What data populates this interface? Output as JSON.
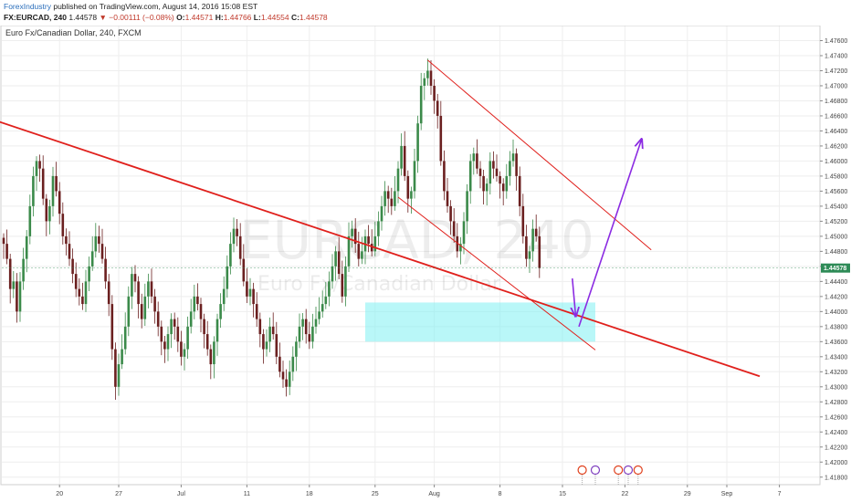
{
  "header": {
    "author": "ForexIndustry",
    "published": "published on TradingView.com, August 14, 2016 15:08 EST",
    "symbol": "FX:EURCAD, 240",
    "last": "1.44578",
    "change": "−0.00111 (−0.08%)",
    "o_label": "O:",
    "o_value": "1.44571",
    "h_label": "H:",
    "h_value": "1.44766",
    "l_label": "L:",
    "l_value": "1.44554",
    "c_label": "C:",
    "c_value": "1.44578"
  },
  "chart_data": {
    "type": "candlestick",
    "title": "Euro Fx/Canadian Dollar, 240, FXCM",
    "watermark": "EURCAD, 240",
    "watermark_sub": "Euro Fx/Canadian Dollar",
    "last_price": 1.44578,
    "last_price_label": "1.44578",
    "y_ticks": [
      "1.47600",
      "1.47400",
      "1.47200",
      "1.47000",
      "1.46800",
      "1.46600",
      "1.46400",
      "1.46200",
      "1.46000",
      "1.45800",
      "1.45600",
      "1.45400",
      "1.45200",
      "1.45000",
      "1.44800",
      "1.44600",
      "1.44400",
      "1.44200",
      "1.44000",
      "1.43800",
      "1.43600",
      "1.43400",
      "1.43200",
      "1.43000",
      "1.42800",
      "1.42600",
      "1.42400",
      "1.42200",
      "1.42000",
      "1.41800"
    ],
    "ylim": [
      1.417,
      1.478
    ],
    "x_ticks": [
      {
        "label": "20",
        "bar": 17
      },
      {
        "label": "27",
        "bar": 35
      },
      {
        "label": "Jul",
        "bar": 54
      },
      {
        "label": "11",
        "bar": 74
      },
      {
        "label": "18",
        "bar": 93
      },
      {
        "label": "25",
        "bar": 113
      },
      {
        "label": "Aug",
        "bar": 131
      },
      {
        "label": "8",
        "bar": 151
      },
      {
        "label": "15",
        "bar": 170
      },
      {
        "label": "22",
        "bar": 189
      },
      {
        "label": "29",
        "bar": 208
      },
      {
        "label": "Sep",
        "bar": 220
      },
      {
        "label": "7",
        "bar": 236
      }
    ],
    "series": [
      {
        "name": "EURCAD",
        "closes": [
          1.449,
          1.447,
          1.443,
          1.444,
          1.44,
          1.444,
          1.447,
          1.45,
          1.454,
          1.458,
          1.46,
          1.459,
          1.455,
          1.452,
          1.454,
          1.458,
          1.456,
          1.453,
          1.45,
          1.449,
          1.447,
          1.445,
          1.443,
          1.442,
          1.441,
          1.444,
          1.446,
          1.448,
          1.45,
          1.449,
          1.447,
          1.444,
          1.441,
          1.435,
          1.43,
          1.433,
          1.435,
          1.438,
          1.442,
          1.445,
          1.444,
          1.441,
          1.439,
          1.442,
          1.444,
          1.442,
          1.44,
          1.438,
          1.436,
          1.435,
          1.437,
          1.439,
          1.438,
          1.436,
          1.434,
          1.435,
          1.438,
          1.44,
          1.442,
          1.441,
          1.439,
          1.437,
          1.435,
          1.433,
          1.436,
          1.439,
          1.441,
          1.443,
          1.446,
          1.449,
          1.451,
          1.45,
          1.447,
          1.444,
          1.442,
          1.443,
          1.441,
          1.439,
          1.437,
          1.435,
          1.436,
          1.438,
          1.437,
          1.434,
          1.432,
          1.431,
          1.43,
          1.432,
          1.434,
          1.436,
          1.438,
          1.439,
          1.437,
          1.436,
          1.438,
          1.439,
          1.44,
          1.441,
          1.442,
          1.444,
          1.446,
          1.448,
          1.445,
          1.442,
          1.446,
          1.45,
          1.451,
          1.449,
          1.447,
          1.448,
          1.45,
          1.449,
          1.448,
          1.45,
          1.452,
          1.454,
          1.456,
          1.455,
          1.454,
          1.456,
          1.459,
          1.462,
          1.458,
          1.455,
          1.456,
          1.46,
          1.465,
          1.47,
          1.471,
          1.472,
          1.47,
          1.468,
          1.466,
          1.46,
          1.456,
          1.454,
          1.452,
          1.45,
          1.448,
          1.449,
          1.452,
          1.456,
          1.46,
          1.461,
          1.459,
          1.458,
          1.456,
          1.457,
          1.46,
          1.459,
          1.458,
          1.457,
          1.456,
          1.458,
          1.46,
          1.461,
          1.458,
          1.454,
          1.45,
          1.447,
          1.448,
          1.451,
          1.45,
          1.44578
        ]
      }
    ],
    "annotations": [
      {
        "type": "trendline",
        "name": "long-downtrend",
        "color": "#e0201c",
        "points": [
          [
            -4,
            1.4656
          ],
          [
            230,
            1.4314
          ]
        ]
      },
      {
        "type": "trendline",
        "name": "channel-upper",
        "color": "#e0201c",
        "points": [
          [
            129,
            1.4734
          ],
          [
            197,
            1.4482
          ]
        ]
      },
      {
        "type": "trendline",
        "name": "channel-lower",
        "color": "#e0201c",
        "points": [
          [
            120,
            1.4552
          ],
          [
            180,
            1.4349
          ]
        ]
      },
      {
        "type": "zone",
        "name": "support-zone",
        "color": "#7ff0f2",
        "x0": 110,
        "x1": 180,
        "y0": 1.436,
        "y1": 1.4412
      },
      {
        "type": "arrow",
        "name": "arrow-down",
        "color": "#8b2be2",
        "from": [
          173,
          1.4444
        ],
        "to": [
          174,
          1.4395
        ]
      },
      {
        "type": "arrow",
        "name": "arrow-up",
        "color": "#8b2be2",
        "from": [
          175,
          1.438
        ],
        "to": [
          194,
          1.4628
        ]
      }
    ],
    "grid": true,
    "colors": {
      "up": "#3b8a4a",
      "down": "#6b2020",
      "axis": "#888888",
      "last": "#2e8b57"
    }
  }
}
